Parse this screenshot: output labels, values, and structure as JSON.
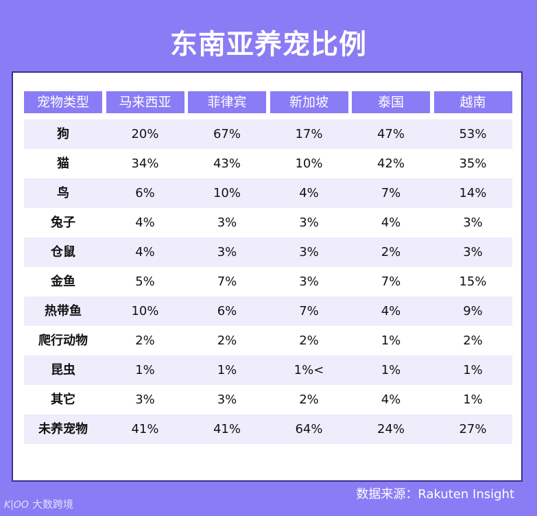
{
  "chart_data": {
    "type": "table",
    "title": "东南亚养宠比例",
    "columns": [
      "宠物类型",
      "马来西亚",
      "菲律宾",
      "新加坡",
      "泰国",
      "越南"
    ],
    "rows": [
      [
        "狗",
        "20%",
        "67%",
        "17%",
        "47%",
        "53%"
      ],
      [
        "猫",
        "34%",
        "43%",
        "10%",
        "42%",
        "35%"
      ],
      [
        "鸟",
        "6%",
        "10%",
        "4%",
        "7%",
        "14%"
      ],
      [
        "兔子",
        "4%",
        "3%",
        "3%",
        "4%",
        "3%"
      ],
      [
        "仓鼠",
        "4%",
        "3%",
        "3%",
        "2%",
        "3%"
      ],
      [
        "金鱼",
        "5%",
        "7%",
        "3%",
        "7%",
        "15%"
      ],
      [
        "热带鱼",
        "10%",
        "6%",
        "7%",
        "4%",
        "9%"
      ],
      [
        "爬行动物",
        "2%",
        "2%",
        "2%",
        "1%",
        "2%"
      ],
      [
        "昆虫",
        "1%",
        "1%",
        "1%<",
        "1%",
        "1%"
      ],
      [
        "其它",
        "3%",
        "3%",
        "2%",
        "4%",
        "1%"
      ],
      [
        "未养宠物",
        "41%",
        "41%",
        "64%",
        "24%",
        "27%"
      ]
    ]
  },
  "source": "数据来源：Rakuten Insight",
  "watermark": {
    "logo": "K|OO",
    "text": "大数跨境"
  },
  "colors": {
    "background": "#8a7cf5",
    "header": "#8a7cf5",
    "row_shade": "#efedfc",
    "border": "#3b2f8a"
  }
}
